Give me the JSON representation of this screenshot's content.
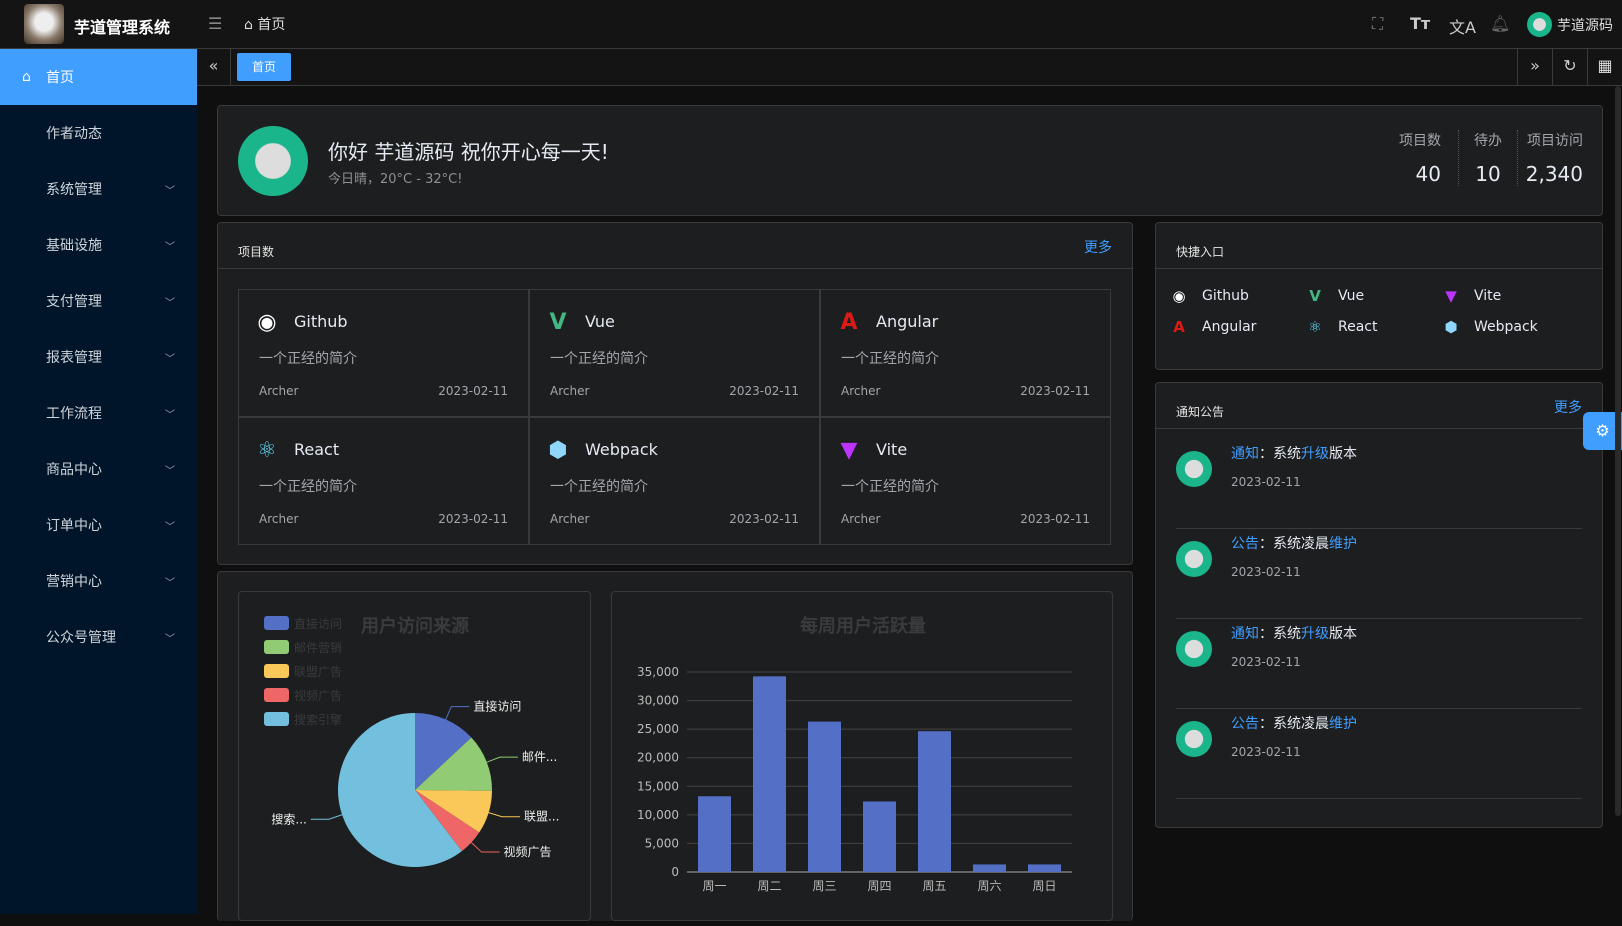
{
  "app": {
    "title": "芋道管理系统",
    "breadcrumb": "首页",
    "user": "芋道源码"
  },
  "tabs": [
    {
      "label": "首页"
    }
  ],
  "sidebar": {
    "items": [
      {
        "label": "首页"
      },
      {
        "label": "作者动态"
      },
      {
        "label": "系统管理"
      },
      {
        "label": "基础设施"
      },
      {
        "label": "支付管理"
      },
      {
        "label": "报表管理"
      },
      {
        "label": "工作流程"
      },
      {
        "label": "商品中心"
      },
      {
        "label": "订单中心"
      },
      {
        "label": "营销中心"
      },
      {
        "label": "公众号管理"
      }
    ]
  },
  "welcome": {
    "greeting": "你好 芋道源码 祝你开心每一天!",
    "weather": "今日晴，20°C - 32°C!",
    "stats": [
      {
        "label": "项目数",
        "value": "40"
      },
      {
        "label": "待办",
        "value": "10"
      },
      {
        "label": "项目访问",
        "value": "2,340"
      }
    ]
  },
  "projects": {
    "title": "项目数",
    "more": "更多",
    "items": [
      {
        "name": "Github",
        "desc": "一个正经的简介",
        "author": "Archer",
        "date": "2023-02-11",
        "icon": "github-icon",
        "color": "#ffffff"
      },
      {
        "name": "Vue",
        "desc": "一个正经的简介",
        "author": "Archer",
        "date": "2023-02-11",
        "icon": "vue-icon",
        "color": "#42b883"
      },
      {
        "name": "Angular",
        "desc": "一个正经的简介",
        "author": "Archer",
        "date": "2023-02-11",
        "icon": "angular-icon",
        "color": "#dd1b16"
      },
      {
        "name": "React",
        "desc": "一个正经的简介",
        "author": "Archer",
        "date": "2023-02-11",
        "icon": "react-icon",
        "color": "#61dafb"
      },
      {
        "name": "Webpack",
        "desc": "一个正经的简介",
        "author": "Archer",
        "date": "2023-02-11",
        "icon": "webpack-icon",
        "color": "#8ed6fb"
      },
      {
        "name": "Vite",
        "desc": "一个正经的简介",
        "author": "Archer",
        "date": "2023-02-11",
        "icon": "vite-icon",
        "color": "#bd34fe"
      }
    ]
  },
  "quick": {
    "title": "快捷入口",
    "items": [
      {
        "name": "Github",
        "color": "#ffffff"
      },
      {
        "name": "Vue",
        "color": "#42b883"
      },
      {
        "name": "Vite",
        "color": "#bd34fe"
      },
      {
        "name": "Angular",
        "color": "#dd1b16"
      },
      {
        "name": "React",
        "color": "#61dafb"
      },
      {
        "name": "Webpack",
        "color": "#8ed6fb"
      }
    ]
  },
  "notices": {
    "title": "通知公告",
    "more": "更多",
    "items": [
      {
        "type": "通知",
        "pre": "：系统",
        "hl": "升级",
        "post": "版本",
        "date": "2023-02-11"
      },
      {
        "type": "公告",
        "pre": "：系统凌晨",
        "hl": "维护",
        "post": "",
        "date": "2023-02-11"
      },
      {
        "type": "通知",
        "pre": "：系统",
        "hl": "升级",
        "post": "版本",
        "date": "2023-02-11"
      },
      {
        "type": "公告",
        "pre": "：系统凌晨",
        "hl": "维护",
        "post": "",
        "date": "2023-02-11"
      }
    ]
  },
  "chart_data": [
    {
      "type": "pie",
      "title": "用户访问来源",
      "legend": "top-left",
      "categories": [
        "直接访问",
        "邮件营销",
        "联盟广告",
        "视频广告",
        "搜索引擎"
      ],
      "values": [
        335,
        310,
        234,
        135,
        1548
      ],
      "colors": [
        "#5470c6",
        "#91cc75",
        "#fac858",
        "#ee6666",
        "#73c0de"
      ],
      "slice_labels": [
        "直接访问",
        "邮件...",
        "联盟...",
        "视频广告",
        "搜索..."
      ]
    },
    {
      "type": "bar",
      "title": "每周用户活跃量",
      "categories": [
        "周一",
        "周二",
        "周三",
        "周四",
        "周五",
        "周六",
        "周日"
      ],
      "values": [
        13253,
        34235,
        26321,
        12340,
        24643,
        1322,
        1324
      ],
      "ylim": [
        0,
        35000
      ],
      "yticks": [
        "0",
        "5,000",
        "10,000",
        "15,000",
        "20,000",
        "25,000",
        "30,000",
        "35,000"
      ],
      "color": "#5470c6",
      "grid": true
    }
  ]
}
